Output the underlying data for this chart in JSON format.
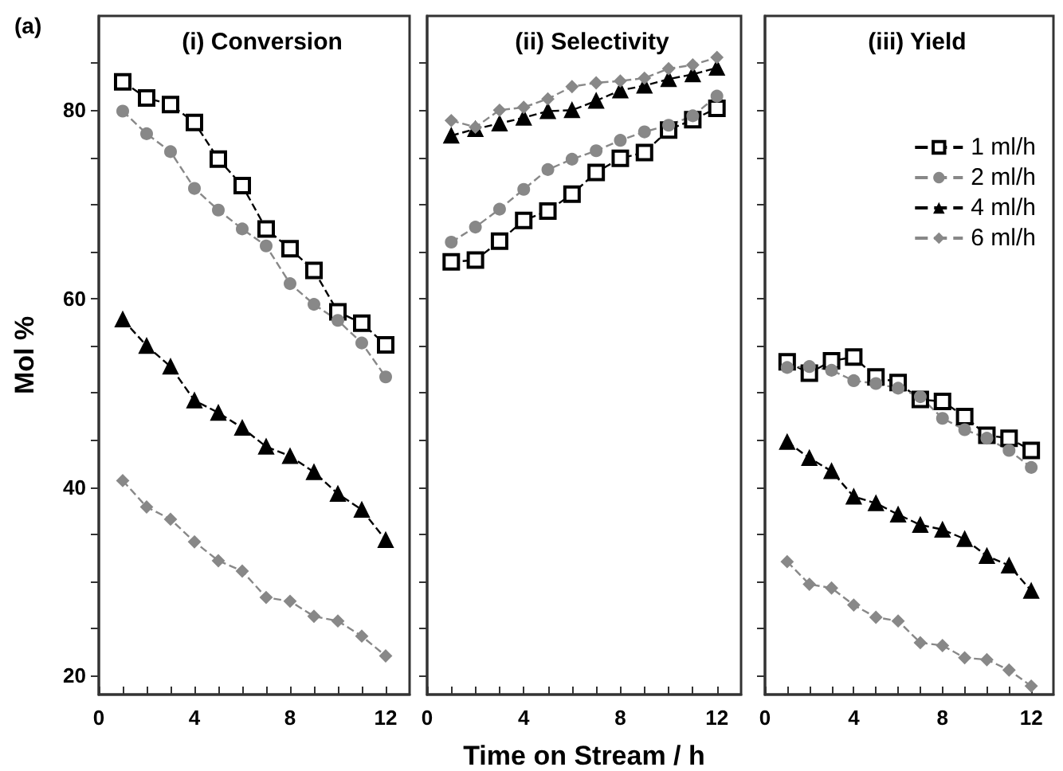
{
  "chart_data": [
    {
      "type": "line",
      "title": "(i) Conversion",
      "ylabel": "Mol %",
      "annotations": [
        "(a)"
      ],
      "x": [
        1,
        2,
        3,
        4,
        5,
        6,
        7,
        8,
        9,
        10,
        11,
        12
      ],
      "xlim": [
        0,
        13
      ],
      "xticks": [
        0,
        {
          "value": 1,
          "label": null
        },
        {
          "value": 2,
          "label": null
        },
        {
          "value": 3,
          "label": null
        },
        4,
        {
          "value": 5,
          "label": null
        },
        {
          "value": 6,
          "label": null
        },
        {
          "value": 7,
          "label": null
        },
        8,
        {
          "value": 9,
          "label": null
        },
        {
          "value": 10,
          "label": null
        },
        {
          "value": 11,
          "label": null
        },
        12
      ],
      "ylim": [
        18,
        90
      ],
      "yticks": [
        20,
        {
          "value": 25,
          "label": null
        },
        {
          "value": 30,
          "label": null
        },
        {
          "value": 35,
          "label": null
        },
        40,
        {
          "value": 45,
          "label": null
        },
        {
          "value": 50,
          "label": null
        },
        {
          "value": 55,
          "label": null
        },
        60,
        {
          "value": 65,
          "label": null
        },
        {
          "value": 70,
          "label": null
        },
        {
          "value": 75,
          "label": null
        },
        80,
        {
          "value": 85,
          "label": null
        }
      ],
      "grid": false,
      "legend": false,
      "line_style": "dashed",
      "series": [
        {
          "color": "#000000",
          "marker": "square",
          "values": [
            83.0,
            81.3,
            80.6,
            78.7,
            74.8,
            72.0,
            67.4,
            65.3,
            63.0,
            58.6,
            57.4,
            55.1
          ]
        },
        {
          "color": "#888888",
          "marker": "circle",
          "values": [
            79.9,
            77.5,
            75.6,
            71.7,
            69.4,
            67.4,
            65.6,
            61.6,
            59.4,
            57.7,
            55.3,
            51.7
          ]
        },
        {
          "color": "#000000",
          "marker": "triangle",
          "values": [
            57.8,
            55.0,
            52.8,
            49.2,
            47.9,
            46.3,
            44.3,
            43.3,
            41.6,
            39.3,
            37.6,
            34.4
          ]
        },
        {
          "color": "#888888",
          "marker": "diamond",
          "values": [
            40.7,
            37.9,
            36.6,
            34.2,
            32.2,
            31.1,
            28.3,
            27.9,
            26.3,
            25.8,
            24.2,
            22.1
          ]
        }
      ]
    },
    {
      "type": "line",
      "title": "(ii) Selectivity",
      "xlabel": "Time on Stream / h",
      "x": [
        1,
        2,
        3,
        4,
        5,
        6,
        7,
        8,
        9,
        10,
        11,
        12
      ],
      "xlim": [
        0,
        13
      ],
      "xticks": [
        0,
        {
          "value": 1,
          "label": null
        },
        {
          "value": 2,
          "label": null
        },
        {
          "value": 3,
          "label": null
        },
        4,
        {
          "value": 5,
          "label": null
        },
        {
          "value": 6,
          "label": null
        },
        {
          "value": 7,
          "label": null
        },
        8,
        {
          "value": 9,
          "label": null
        },
        {
          "value": 10,
          "label": null
        },
        {
          "value": 11,
          "label": null
        },
        12
      ],
      "ylim": [
        18,
        90
      ],
      "yticks": [
        20,
        {
          "value": 25,
          "label": null
        },
        {
          "value": 30,
          "label": null
        },
        {
          "value": 35,
          "label": null
        },
        40,
        {
          "value": 45,
          "label": null
        },
        {
          "value": 50,
          "label": null
        },
        {
          "value": 55,
          "label": null
        },
        60,
        {
          "value": 65,
          "label": null
        },
        {
          "value": 70,
          "label": null
        },
        {
          "value": 75,
          "label": null
        },
        80,
        {
          "value": 85,
          "label": null
        }
      ],
      "tick_labels": "x",
      "grid": false,
      "legend": false,
      "line_style": "dashed",
      "series": [
        {
          "color": "#000000",
          "marker": "square",
          "values": [
            63.9,
            64.1,
            66.1,
            68.3,
            69.3,
            71.1,
            73.4,
            74.9,
            75.5,
            77.9,
            79.0,
            80.2
          ]
        },
        {
          "color": "#888888",
          "marker": "circle",
          "values": [
            66.0,
            67.6,
            69.5,
            71.6,
            73.7,
            74.8,
            75.7,
            76.8,
            77.7,
            78.4,
            79.4,
            81.5
          ]
        },
        {
          "color": "#000000",
          "marker": "triangle",
          "values": [
            77.3,
            78.0,
            78.6,
            79.2,
            79.9,
            80.0,
            81.0,
            82.1,
            82.6,
            83.3,
            83.8,
            84.5
          ]
        },
        {
          "color": "#888888",
          "marker": "diamond",
          "values": [
            78.9,
            78.2,
            80.0,
            80.3,
            81.2,
            82.5,
            82.9,
            83.1,
            83.4,
            84.4,
            84.8,
            85.6
          ]
        }
      ]
    },
    {
      "type": "line",
      "title": "(iii) Yield",
      "x": [
        1,
        2,
        3,
        4,
        5,
        6,
        7,
        8,
        9,
        10,
        11,
        12
      ],
      "xlim": [
        0,
        13
      ],
      "xticks": [
        0,
        {
          "value": 1,
          "label": null
        },
        {
          "value": 2,
          "label": null
        },
        {
          "value": 3,
          "label": null
        },
        4,
        {
          "value": 5,
          "label": null
        },
        {
          "value": 6,
          "label": null
        },
        {
          "value": 7,
          "label": null
        },
        8,
        {
          "value": 9,
          "label": null
        },
        {
          "value": 10,
          "label": null
        },
        {
          "value": 11,
          "label": null
        },
        12
      ],
      "ylim": [
        18,
        90
      ],
      "yticks": [
        20,
        {
          "value": 25,
          "label": null
        },
        {
          "value": 30,
          "label": null
        },
        {
          "value": 35,
          "label": null
        },
        40,
        {
          "value": 45,
          "label": null
        },
        {
          "value": 50,
          "label": null
        },
        {
          "value": 55,
          "label": null
        },
        60,
        {
          "value": 65,
          "label": null
        },
        {
          "value": 70,
          "label": null
        },
        {
          "value": 75,
          "label": null
        },
        80,
        {
          "value": 85,
          "label": null
        }
      ],
      "tick_labels": "x",
      "grid": false,
      "legend": "top right",
      "line_style": "dashed",
      "series": [
        {
          "name": "1 ml/h",
          "color": "#000000",
          "marker": "square",
          "values": [
            53.3,
            52.1,
            53.4,
            53.8,
            51.7,
            51.1,
            49.3,
            49.1,
            47.5,
            45.5,
            45.2,
            43.9
          ]
        },
        {
          "name": "2 ml/h",
          "color": "#888888",
          "marker": "circle",
          "values": [
            52.7,
            52.8,
            52.4,
            51.3,
            51.0,
            50.5,
            49.6,
            47.3,
            46.1,
            45.2,
            43.9,
            42.1
          ]
        },
        {
          "name": "4 ml/h",
          "color": "#000000",
          "marker": "triangle",
          "values": [
            44.8,
            43.1,
            41.7,
            39.0,
            38.3,
            37.1,
            36.0,
            35.5,
            34.5,
            32.7,
            31.7,
            29.0
          ]
        },
        {
          "name": "6 ml/h",
          "color": "#888888",
          "marker": "diamond",
          "values": [
            32.1,
            29.7,
            29.3,
            27.5,
            26.2,
            25.8,
            23.5,
            23.2,
            21.9,
            21.7,
            20.6,
            18.9
          ]
        }
      ]
    }
  ]
}
